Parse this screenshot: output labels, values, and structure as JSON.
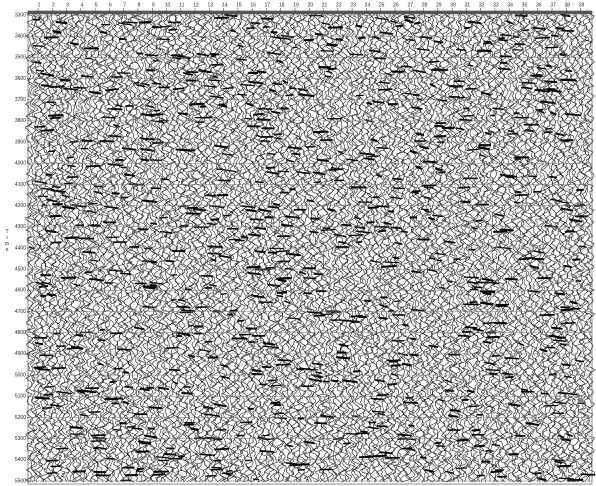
{
  "chart_data": {
    "type": "seismic",
    "ylabel": "Time",
    "xlim": [
      0.3,
      39.8
    ],
    "xticks": [
      1,
      2,
      3,
      4,
      5,
      6,
      7,
      8,
      9,
      10,
      11,
      12,
      13,
      14,
      15,
      16,
      17,
      18,
      19,
      20,
      21,
      22,
      23,
      24,
      25,
      26,
      27,
      28,
      29,
      30,
      31,
      32,
      33,
      34,
      35,
      36,
      37,
      38,
      39
    ],
    "ylim": [
      3300,
      5500
    ],
    "yticks": [
      3300,
      3400,
      3500,
      3600,
      3700,
      3800,
      3900,
      4000,
      4100,
      4200,
      4300,
      4400,
      4500,
      4600,
      4700,
      4800,
      4900,
      5000,
      5100,
      5200,
      5300,
      5400,
      5500
    ],
    "invert_y": true,
    "grid": true
  }
}
